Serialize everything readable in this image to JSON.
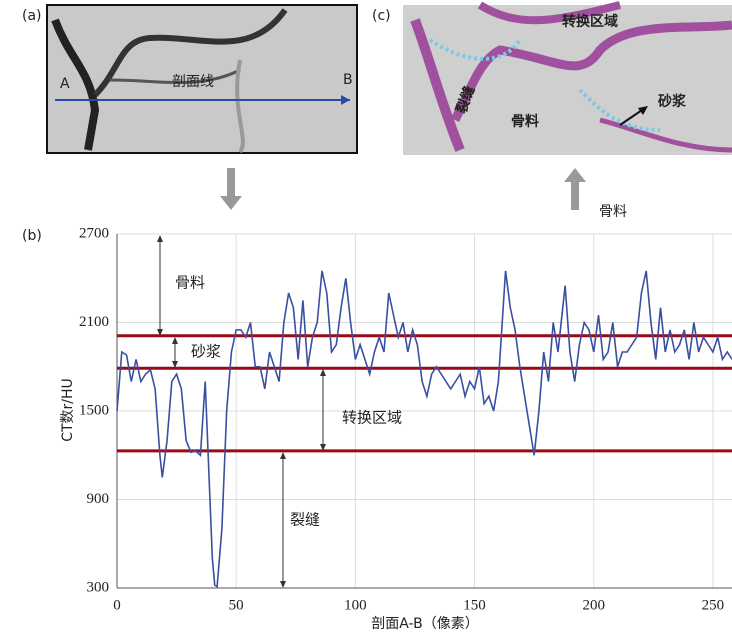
{
  "panel_a": {
    "label": "(a)",
    "start": "A",
    "end": "B",
    "line": "剖面线"
  },
  "panel_c": {
    "label": "(c)",
    "zone": "转换区域",
    "crack": "裂缝",
    "aggregate": "骨料",
    "mortar": "砂浆"
  },
  "arrow_caption": "骨料",
  "chart_data": {
    "type": "line",
    "panel_label": "(b)",
    "x_label": "剖面A-B（像素）",
    "y_label": "CT数r/HU",
    "xlim": [
      0,
      258
    ],
    "ylim": [
      300,
      2700
    ],
    "xticks": [
      0,
      50,
      100,
      150,
      200,
      250
    ],
    "yticks": [
      300,
      900,
      1500,
      2100,
      2700
    ],
    "grid": true,
    "x": [
      0,
      2,
      4,
      6,
      8,
      10,
      12,
      14,
      16,
      18,
      19,
      21,
      23,
      25,
      27,
      29,
      31,
      33,
      35,
      37,
      39,
      40,
      41,
      42,
      44,
      46,
      48,
      50,
      52,
      54,
      56,
      58,
      60,
      62,
      64,
      66,
      68,
      70,
      72,
      74,
      76,
      78,
      80,
      82,
      84,
      86,
      88,
      90,
      92,
      94,
      96,
      98,
      100,
      102,
      104,
      106,
      108,
      110,
      112,
      114,
      116,
      118,
      120,
      122,
      124,
      126,
      128,
      130,
      132,
      134,
      136,
      138,
      140,
      142,
      144,
      146,
      148,
      150,
      152,
      154,
      156,
      158,
      160,
      162,
      163,
      165,
      167,
      169,
      171,
      173,
      175,
      177,
      179,
      181,
      183,
      185,
      187,
      188,
      190,
      192,
      194,
      196,
      198,
      200,
      202,
      204,
      206,
      208,
      210,
      212,
      214,
      216,
      218,
      220,
      222,
      224,
      226,
      228,
      230,
      232,
      234,
      236,
      238,
      240,
      242,
      244,
      246,
      248,
      250,
      252,
      254,
      256,
      258
    ],
    "series": [
      {
        "color": "#3a4fa0",
        "values": [
          1500,
          1900,
          1880,
          1700,
          1850,
          1700,
          1750,
          1780,
          1650,
          1200,
          1050,
          1300,
          1700,
          1750,
          1650,
          1300,
          1220,
          1230,
          1200,
          1700,
          900,
          500,
          320,
          310,
          700,
          1500,
          1900,
          2050,
          2050,
          2000,
          2100,
          1800,
          1800,
          1650,
          1900,
          1800,
          1700,
          2100,
          2300,
          2200,
          1850,
          2250,
          1800,
          2000,
          2100,
          2450,
          2300,
          1900,
          1950,
          2200,
          2400,
          2100,
          1850,
          1950,
          1850,
          1750,
          1900,
          2000,
          1900,
          2300,
          2150,
          2000,
          2100,
          1900,
          2050,
          1950,
          1700,
          1600,
          1750,
          1800,
          1750,
          1700,
          1650,
          1700,
          1750,
          1600,
          1700,
          1650,
          1800,
          1550,
          1600,
          1500,
          1700,
          2200,
          2450,
          2200,
          2050,
          1800,
          1600,
          1400,
          1200,
          1500,
          1900,
          1700,
          2100,
          1900,
          2200,
          2350,
          1900,
          1700,
          1950,
          2100,
          2050,
          1900,
          2150,
          1850,
          1900,
          2100,
          1800,
          1900,
          1900,
          1950,
          2000,
          2300,
          2450,
          2100,
          1850,
          2200,
          1900,
          2050,
          1900,
          1950,
          2050,
          1850,
          2100,
          1900,
          2000,
          1950,
          1900,
          2000,
          1850,
          1900,
          1850
        ]
      }
    ],
    "thresholds": [
      2010,
      1790,
      1230
    ],
    "threshold_color": "#9b0a14",
    "annotations": [
      "骨料",
      "砂浆",
      "转换区域",
      "裂缝"
    ]
  }
}
